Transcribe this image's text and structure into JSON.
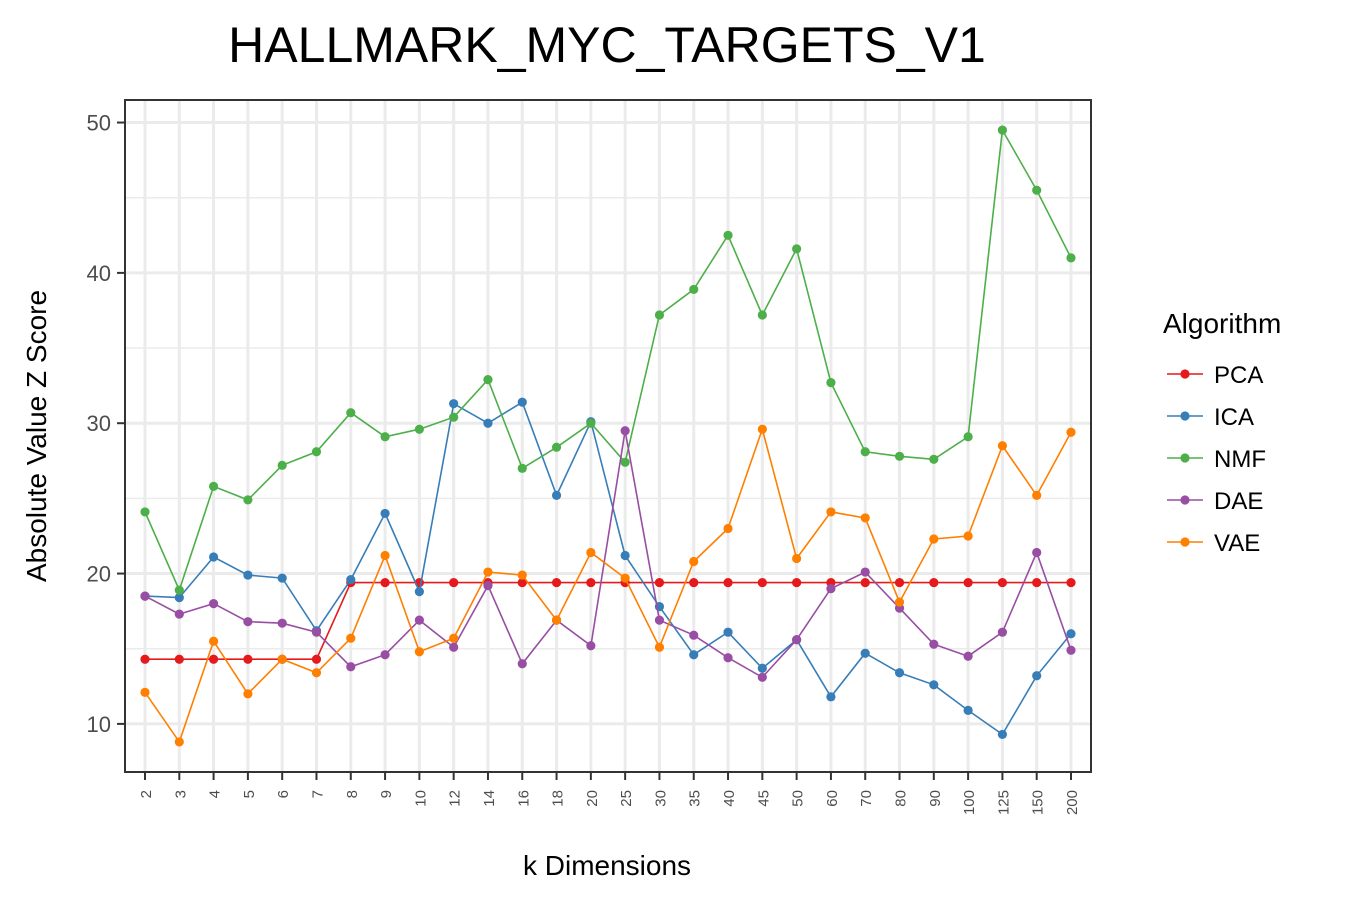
{
  "chart_data": {
    "type": "line",
    "title": "HALLMARK_MYC_TARGETS_V1",
    "xlabel": "k Dimensions",
    "ylabel": "Absolute Value Z Score",
    "categories": [
      "2",
      "3",
      "4",
      "5",
      "6",
      "7",
      "8",
      "9",
      "10",
      "12",
      "14",
      "16",
      "18",
      "20",
      "25",
      "30",
      "35",
      "40",
      "45",
      "50",
      "60",
      "70",
      "80",
      "90",
      "100",
      "125",
      "150",
      "200"
    ],
    "y_ticks": [
      10,
      20,
      30,
      40,
      50
    ],
    "ylim": [
      6.8,
      51.5
    ],
    "grid": true,
    "legend_title": "Algorithm",
    "legend_position": "right",
    "series": [
      {
        "name": "PCA",
        "color": "#e41a1c",
        "values": [
          14.3,
          14.3,
          14.3,
          14.3,
          14.3,
          14.3,
          19.4,
          19.4,
          19.4,
          19.4,
          19.4,
          19.4,
          19.4,
          19.4,
          19.4,
          19.4,
          19.4,
          19.4,
          19.4,
          19.4,
          19.4,
          19.4,
          19.4,
          19.4,
          19.4,
          19.4,
          19.4,
          19.4
        ]
      },
      {
        "name": "ICA",
        "color": "#377eb8",
        "values": [
          18.5,
          18.4,
          21.1,
          19.9,
          19.7,
          16.2,
          19.6,
          24.0,
          18.8,
          31.3,
          30.0,
          31.4,
          25.2,
          30.1,
          21.2,
          17.8,
          14.6,
          16.1,
          13.7,
          15.6,
          11.8,
          14.7,
          13.4,
          12.6,
          10.9,
          9.3,
          13.2,
          16.0
        ]
      },
      {
        "name": "NMF",
        "color": "#4daf4a",
        "values": [
          24.1,
          18.9,
          25.8,
          24.9,
          27.2,
          28.1,
          30.7,
          29.1,
          29.6,
          30.4,
          32.9,
          27.0,
          28.4,
          30.0,
          27.4,
          37.2,
          38.9,
          42.5,
          37.2,
          41.6,
          32.7,
          28.1,
          27.8,
          27.6,
          29.1,
          49.5,
          45.5,
          41.0
        ]
      },
      {
        "name": "DAE",
        "color": "#984ea3",
        "values": [
          18.5,
          17.3,
          18.0,
          16.8,
          16.7,
          16.1,
          13.8,
          14.6,
          16.9,
          15.1,
          19.2,
          14.0,
          16.9,
          15.2,
          29.5,
          16.9,
          15.9,
          14.4,
          13.1,
          15.6,
          19.0,
          20.1,
          17.7,
          15.3,
          14.5,
          16.1,
          21.4,
          14.9
        ]
      },
      {
        "name": "VAE",
        "color": "#ff7f00",
        "values": [
          12.1,
          8.8,
          15.5,
          12.0,
          14.3,
          13.4,
          15.7,
          21.2,
          14.8,
          15.7,
          20.1,
          19.9,
          16.9,
          21.4,
          19.7,
          15.1,
          20.8,
          23.0,
          29.6,
          21.0,
          24.1,
          23.7,
          18.1,
          22.3,
          22.5,
          28.5,
          25.2,
          29.4
        ]
      }
    ]
  }
}
